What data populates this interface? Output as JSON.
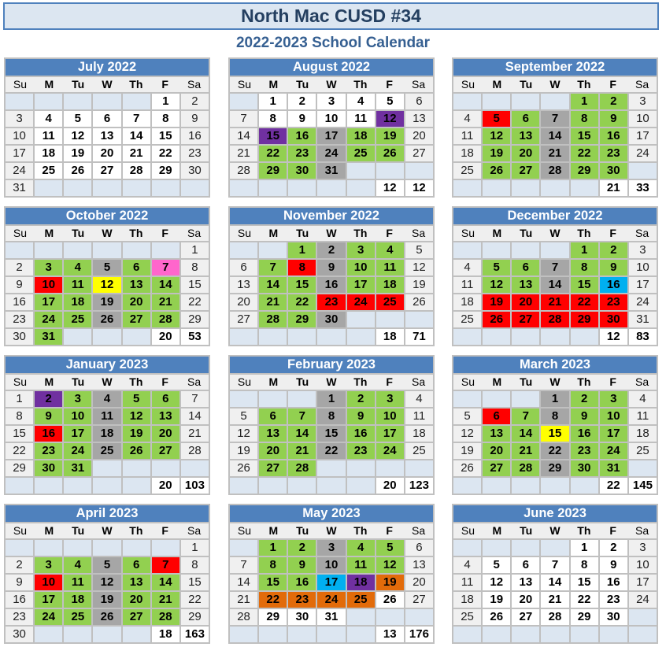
{
  "title": "North Mac CUSD #34",
  "subtitle": "2022-2023 School Calendar",
  "day_names": [
    "Su",
    "M",
    "Tu",
    "W",
    "Th",
    "F",
    "Sa"
  ],
  "colors": {
    "g": "#92d050",
    "x": "#a6a6a6",
    "r": "#ff0000",
    "p": "#7030a0",
    "y": "#ffff00",
    "b": "#00b0f0",
    "o": "#e26b0a",
    "k": "#ff66cc",
    "n": "#ffffff"
  },
  "months": [
    {
      "name": "July 2022",
      "start": 5,
      "days": 31,
      "base": "n",
      "overrides": {},
      "totals": null
    },
    {
      "name": "August 2022",
      "start": 1,
      "days": 31,
      "base": "g",
      "overrides": {
        "1": "n",
        "2": "n",
        "3": "n",
        "4": "n",
        "5": "n",
        "8": "n",
        "9": "n",
        "10": "n",
        "11": "n",
        "12": "p",
        "15": "p",
        "17": "x",
        "24": "x",
        "31": "x"
      },
      "totals": [
        "12",
        "12"
      ]
    },
    {
      "name": "September 2022",
      "start": 4,
      "days": 30,
      "base": "g",
      "overrides": {
        "5": "r",
        "7": "x",
        "14": "x",
        "21": "x",
        "28": "x"
      },
      "totals": [
        "21",
        "33"
      ]
    },
    {
      "name": "October 2022",
      "start": 6,
      "days": 31,
      "base": "g",
      "overrides": {
        "5": "x",
        "7": "k",
        "10": "r",
        "12": "y",
        "19": "x",
        "26": "x"
      },
      "totals": [
        "20",
        "53"
      ]
    },
    {
      "name": "November 2022",
      "start": 2,
      "days": 30,
      "base": "g",
      "overrides": {
        "2": "x",
        "8": "r",
        "9": "x",
        "16": "x",
        "23": "r",
        "24": "r",
        "25": "r",
        "30": "x"
      },
      "totals": [
        "18",
        "71"
      ]
    },
    {
      "name": "December 2022",
      "start": 4,
      "days": 31,
      "base": "g",
      "overrides": {
        "7": "x",
        "14": "x",
        "16": "b",
        "19": "r",
        "20": "r",
        "21": "r",
        "22": "r",
        "23": "r",
        "26": "r",
        "27": "r",
        "28": "r",
        "29": "r",
        "30": "r"
      },
      "totals": [
        "12",
        "83"
      ]
    },
    {
      "name": "January 2023",
      "start": 0,
      "days": 31,
      "base": "g",
      "overrides": {
        "2": "p",
        "4": "x",
        "11": "x",
        "16": "r",
        "18": "x",
        "25": "x"
      },
      "totals": [
        "20",
        "103"
      ]
    },
    {
      "name": "February 2023",
      "start": 3,
      "days": 28,
      "base": "g",
      "overrides": {
        "1": "x",
        "8": "x",
        "15": "x",
        "22": "x"
      },
      "totals": [
        "20",
        "123"
      ]
    },
    {
      "name": "March 2023",
      "start": 3,
      "days": 31,
      "base": "g",
      "overrides": {
        "1": "x",
        "6": "r",
        "8": "x",
        "15": "y",
        "22": "x",
        "29": "x"
      },
      "totals": [
        "22",
        "145"
      ]
    },
    {
      "name": "April 2023",
      "start": 6,
      "days": 30,
      "base": "g",
      "overrides": {
        "5": "x",
        "7": "r",
        "10": "r",
        "12": "x",
        "19": "x",
        "26": "x"
      },
      "totals": [
        "18",
        "163"
      ]
    },
    {
      "name": "May 2023",
      "start": 1,
      "days": 31,
      "base": "g",
      "overrides": {
        "3": "x",
        "10": "x",
        "17": "b",
        "18": "p",
        "19": "o",
        "22": "o",
        "23": "o",
        "24": "o",
        "25": "o",
        "26": "n",
        "29": "n",
        "30": "n",
        "31": "n"
      },
      "totals": [
        "13",
        "176"
      ]
    },
    {
      "name": "June 2023",
      "start": 4,
      "days": 30,
      "base": "n",
      "overrides": {},
      "totals": null
    }
  ]
}
